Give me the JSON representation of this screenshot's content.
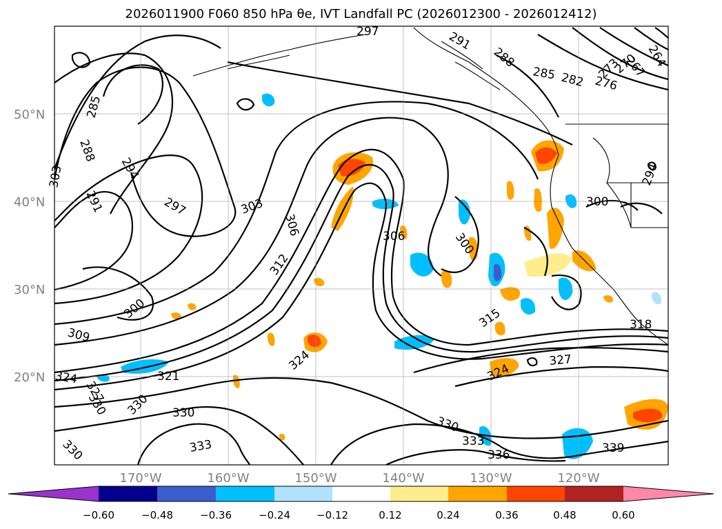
{
  "title_text": "2026011900 F060 850 hPa θe, IVT Landfall PC (2026012300 - 2026012412)",
  "lat_labels": [
    "50°N",
    "40°N",
    "30°N",
    "20°N"
  ],
  "lon_labels": [
    "170°W",
    "160°W",
    "150°W",
    "140°W",
    "130°W",
    "120°W"
  ],
  "contour_labels": [
    "297",
    "291",
    "288",
    "264",
    "267",
    "270",
    "273",
    "276",
    "282",
    "285",
    "285",
    "288",
    "294",
    "303",
    "291",
    "297",
    "303",
    "306",
    "306",
    "300",
    "300",
    "312",
    "300",
    "309",
    "315",
    "318",
    "324",
    "327",
    "324",
    "321",
    "324",
    "327",
    "330",
    "330",
    "330",
    "330",
    "330",
    "333",
    "333",
    "336",
    "339",
    "294"
  ],
  "colorbar": {
    "ticks": [
      "−0.60",
      "−0.48",
      "−0.36",
      "−0.24",
      "−0.12",
      "0.12",
      "0.24",
      "0.36",
      "0.48",
      "0.60"
    ],
    "colors": [
      "#9933cc",
      "#00008b",
      "#3a5fcd",
      "#00bfff",
      "#b0e2ff",
      "#ffffff",
      "#ffec8b",
      "#ffa500",
      "#ff4500",
      "#b22222",
      "#ff88aa"
    ]
  }
}
